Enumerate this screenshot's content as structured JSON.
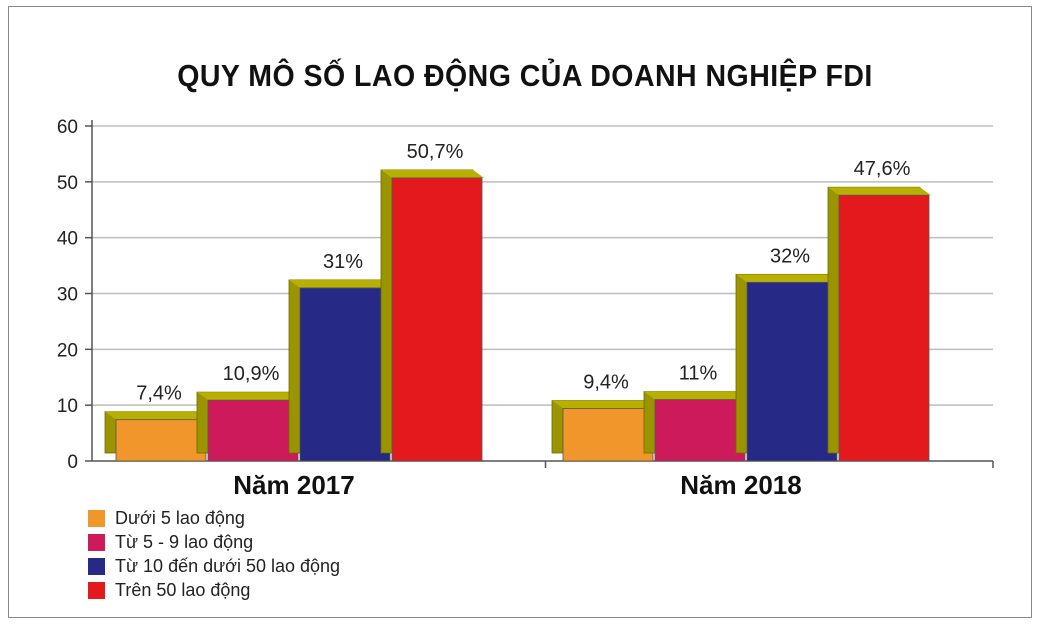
{
  "chart_data": {
    "type": "bar",
    "title": "QUY MÔ SỐ LAO ĐỘNG CỦA DOANH NGHIỆP FDI",
    "categories": [
      "Năm 2017",
      "Năm 2018"
    ],
    "series": [
      {
        "name": "Dưới 5 lao động",
        "values": [
          7.4,
          9.4
        ],
        "labels": [
          "7,4%",
          "9,4%"
        ],
        "color": "#f0962b"
      },
      {
        "name": "Từ 5 - 9 lao động",
        "values": [
          10.9,
          11
        ],
        "labels": [
          "10,9%",
          "11%"
        ],
        "color": "#cc1a5a"
      },
      {
        "name": "Từ 10 đến dưới 50 lao động",
        "values": [
          31,
          32
        ],
        "labels": [
          "31%",
          "32%"
        ],
        "color": "#262a86"
      },
      {
        "name": "Trên 50 lao động",
        "values": [
          50.7,
          47.6
        ],
        "labels": [
          "50,7%",
          "47,6%"
        ],
        "color": "#e3191e"
      }
    ],
    "ylim": [
      0,
      60
    ],
    "yticks": [
      0,
      10,
      20,
      30,
      40,
      50,
      60
    ],
    "grid": true,
    "bar_side_color": "#9a9400",
    "legend_position": "bottom-left"
  }
}
